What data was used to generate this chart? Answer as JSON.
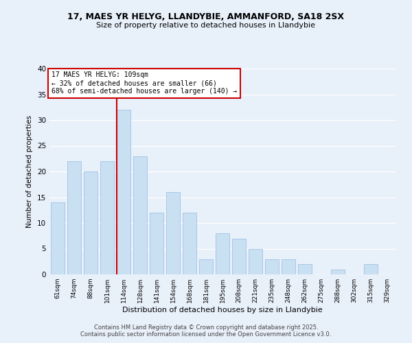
{
  "title_line1": "17, MAES YR HELYG, LLANDYBIE, AMMANFORD, SA18 2SX",
  "title_line2": "Size of property relative to detached houses in Llandybie",
  "xlabel": "Distribution of detached houses by size in Llandybie",
  "ylabel": "Number of detached properties",
  "bar_labels": [
    "61sqm",
    "74sqm",
    "88sqm",
    "101sqm",
    "114sqm",
    "128sqm",
    "141sqm",
    "154sqm",
    "168sqm",
    "181sqm",
    "195sqm",
    "208sqm",
    "221sqm",
    "235sqm",
    "248sqm",
    "262sqm",
    "275sqm",
    "288sqm",
    "302sqm",
    "315sqm",
    "329sqm"
  ],
  "bar_values": [
    14,
    22,
    20,
    22,
    32,
    23,
    12,
    16,
    12,
    3,
    8,
    7,
    5,
    3,
    3,
    2,
    0,
    1,
    0,
    2,
    0
  ],
  "bar_color": "#c9dff2",
  "bar_edge_color": "#a8c8e8",
  "vline_color": "#cc0000",
  "annotation_title": "17 MAES YR HELYG: 109sqm",
  "annotation_line2": "← 32% of detached houses are smaller (66)",
  "annotation_line3": "68% of semi-detached houses are larger (140) →",
  "annotation_box_color": "#ffffff",
  "annotation_box_edge": "#cc0000",
  "ylim": [
    0,
    40
  ],
  "yticks": [
    0,
    5,
    10,
    15,
    20,
    25,
    30,
    35,
    40
  ],
  "background_color": "#e8f0fa",
  "grid_color": "#ffffff",
  "footer_line1": "Contains HM Land Registry data © Crown copyright and database right 2025.",
  "footer_line2": "Contains public sector information licensed under the Open Government Licence v3.0."
}
